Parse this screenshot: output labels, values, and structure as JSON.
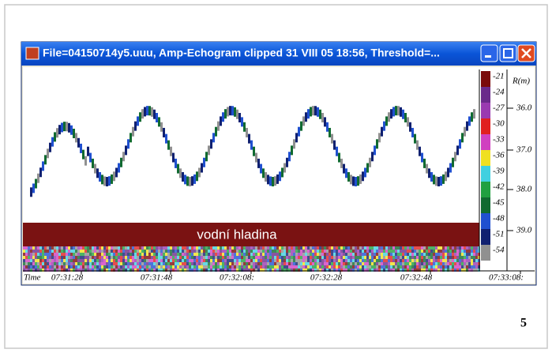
{
  "window": {
    "title": "File=04150714y5.uuu, Amp-Echogram clipped 31 VIII 05 18:56, Threshold=..."
  },
  "colorbar": {
    "labels": [
      "-21",
      "-24",
      "-27",
      "-30",
      "-33",
      "-36",
      "-39",
      "-42",
      "-45",
      "-48",
      "-51",
      "-54"
    ],
    "colors": [
      "#7a0a0a",
      "#6a2a8a",
      "#9a3ab0",
      "#e02020",
      "#d040c0",
      "#f0e020",
      "#40d0e0",
      "#20a040",
      "#106a30",
      "#2050d0",
      "#102070",
      "#909090"
    ]
  },
  "range_axis": {
    "title": "R(m)",
    "labels": [
      "36.0",
      "37.0",
      "38.0",
      "39.0"
    ]
  },
  "time_axis": {
    "title": "Time",
    "labels": [
      "07:31:28",
      "07:31:48",
      "07:32:08:",
      "07:32:28",
      "07:32:48",
      "07:33:08:"
    ]
  },
  "annotation": "vodní hladina",
  "page_number": "5"
}
